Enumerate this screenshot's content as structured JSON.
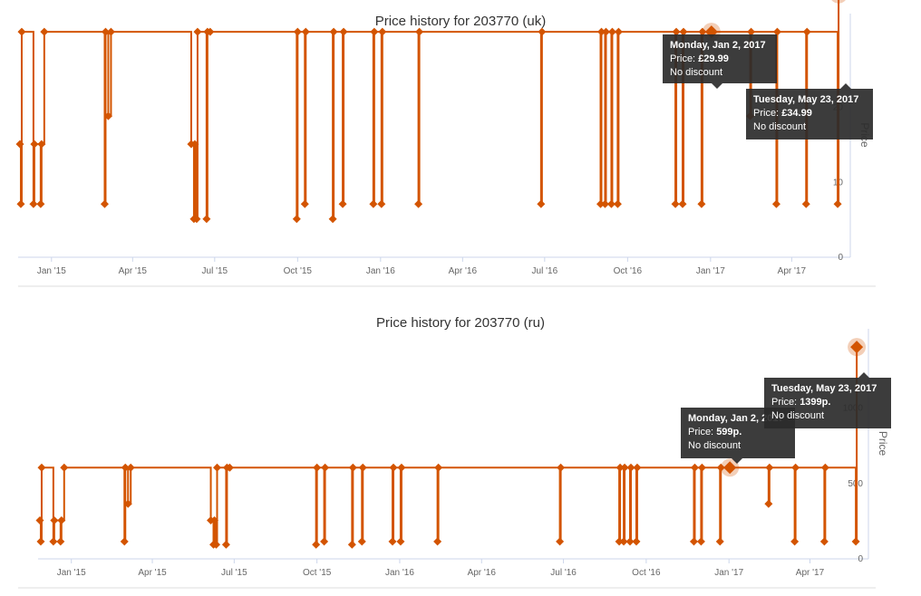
{
  "chart_data": [
    {
      "type": "line",
      "title": "Price history for 203770 (uk)",
      "ylabel": "Price",
      "xlabel": "",
      "x_tick_labels": [
        "Jan '15",
        "Apr '15",
        "Jul '15",
        "Oct '15",
        "Jan '16",
        "Apr '16",
        "Jul '16",
        "Oct '16",
        "Jan '17",
        "Apr '17"
      ],
      "x_tick_dates": [
        "2015-01-01",
        "2015-04-01",
        "2015-07-01",
        "2015-10-01",
        "2016-01-01",
        "2016-04-01",
        "2016-07-01",
        "2016-10-01",
        "2017-01-01",
        "2017-04-01"
      ],
      "y_ticks": [
        0,
        10,
        20
      ],
      "y_tick_labels": [
        "0",
        "10",
        "20"
      ],
      "ylim": [
        0,
        30
      ],
      "xlim": [
        "2014-11-25",
        "2017-06-05"
      ],
      "grid": false,
      "line_color": "#d35400",
      "step": true,
      "series": [
        {
          "name": "",
          "points": [
            [
              "2014-11-27",
              14.99
            ],
            [
              "2014-11-28",
              6.99
            ],
            [
              "2014-11-29",
              29.99
            ],
            [
              "2014-12-12",
              6.99
            ],
            [
              "2014-12-13",
              14.99
            ],
            [
              "2014-12-20",
              6.99
            ],
            [
              "2014-12-21",
              14.99
            ],
            [
              "2014-12-24",
              29.99
            ],
            [
              "2015-03-01",
              6.99
            ],
            [
              "2015-03-02",
              29.99
            ],
            [
              "2015-03-05",
              18.74
            ],
            [
              "2015-03-08",
              29.99
            ],
            [
              "2015-06-05",
              14.99
            ],
            [
              "2015-06-08",
              4.99
            ],
            [
              "2015-06-09",
              14.99
            ],
            [
              "2015-06-11",
              4.99
            ],
            [
              "2015-06-12",
              29.99
            ],
            [
              "2015-06-22",
              4.99
            ],
            [
              "2015-06-23",
              29.99
            ],
            [
              "2015-06-26",
              29.99
            ],
            [
              "2015-09-30",
              4.99
            ],
            [
              "2015-10-01",
              29.99
            ],
            [
              "2015-10-09",
              6.99
            ],
            [
              "2015-10-10",
              29.99
            ],
            [
              "2015-11-09",
              4.99
            ],
            [
              "2015-11-10",
              29.99
            ],
            [
              "2015-11-20",
              6.99
            ],
            [
              "2015-11-21",
              29.99
            ],
            [
              "2015-12-24",
              6.99
            ],
            [
              "2015-12-25",
              29.99
            ],
            [
              "2016-01-02",
              6.99
            ],
            [
              "2016-01-03",
              29.99
            ],
            [
              "2016-02-12",
              6.99
            ],
            [
              "2016-02-13",
              29.99
            ],
            [
              "2016-06-27",
              6.99
            ],
            [
              "2016-06-28",
              29.99
            ],
            [
              "2016-09-01",
              6.99
            ],
            [
              "2016-09-02",
              29.99
            ],
            [
              "2016-09-06",
              6.99
            ],
            [
              "2016-09-07",
              29.99
            ],
            [
              "2016-09-13",
              6.99
            ],
            [
              "2016-09-14",
              29.99
            ],
            [
              "2016-09-20",
              6.99
            ],
            [
              "2016-09-21",
              29.99
            ],
            [
              "2016-11-23",
              6.99
            ],
            [
              "2016-11-24",
              29.99
            ],
            [
              "2016-12-01",
              6.99
            ],
            [
              "2016-12-02",
              29.99
            ],
            [
              "2016-12-22",
              6.99
            ],
            [
              "2016-12-23",
              29.99
            ],
            [
              "2017-01-02",
              29.99
            ],
            [
              "2017-02-14",
              18.74
            ],
            [
              "2017-02-15",
              29.99
            ],
            [
              "2017-03-15",
              6.99
            ],
            [
              "2017-03-16",
              29.99
            ],
            [
              "2017-04-17",
              6.99
            ],
            [
              "2017-04-18",
              29.99
            ],
            [
              "2017-05-22",
              6.99
            ],
            [
              "2017-05-23",
              34.99
            ]
          ]
        }
      ],
      "highlighted_points": [
        {
          "x": "2017-01-02",
          "y": 29.99
        },
        {
          "x": "2017-05-23",
          "y": 34.99
        }
      ],
      "tooltips": [
        {
          "title": "Monday, Jan 2, 2017",
          "price_label": "Price: ",
          "price": "£29.99",
          "discount": "No discount"
        },
        {
          "title": "Tuesday, May 23, 2017",
          "price_label": "Price: ",
          "price": "£34.99",
          "discount": "No discount"
        }
      ]
    },
    {
      "type": "line",
      "title": "Price history for 203770 (ru)",
      "ylabel": "Price",
      "xlabel": "",
      "x_tick_labels": [
        "Jan '15",
        "Apr '15",
        "Jul '15",
        "Oct '15",
        "Jan '16",
        "Apr '16",
        "Jul '16",
        "Oct '16",
        "Jan '17",
        "Apr '17"
      ],
      "x_tick_dates": [
        "2015-01-01",
        "2015-04-01",
        "2015-07-01",
        "2015-10-01",
        "2016-01-01",
        "2016-04-01",
        "2016-07-01",
        "2016-10-01",
        "2017-01-01",
        "2017-04-01"
      ],
      "y_ticks": [
        0,
        500,
        1000
      ],
      "y_tick_labels": [
        "0",
        "500",
        "1000"
      ],
      "ylim": [
        0,
        1400
      ],
      "xlim": [
        "2014-11-25",
        "2017-06-05"
      ],
      "grid": false,
      "line_color": "#d35400",
      "step": true,
      "series": [
        {
          "name": "",
          "points": [
            [
              "2014-11-27",
              249
            ],
            [
              "2014-11-28",
              109
            ],
            [
              "2014-11-29",
              599
            ],
            [
              "2014-12-12",
              109
            ],
            [
              "2014-12-13",
              249
            ],
            [
              "2014-12-20",
              109
            ],
            [
              "2014-12-21",
              249
            ],
            [
              "2014-12-24",
              599
            ],
            [
              "2015-03-01",
              109
            ],
            [
              "2015-03-02",
              599
            ],
            [
              "2015-03-05",
              359
            ],
            [
              "2015-03-08",
              599
            ],
            [
              "2015-06-05",
              249
            ],
            [
              "2015-06-08",
              89
            ],
            [
              "2015-06-09",
              249
            ],
            [
              "2015-06-11",
              89
            ],
            [
              "2015-06-12",
              599
            ],
            [
              "2015-06-22",
              89
            ],
            [
              "2015-06-23",
              599
            ],
            [
              "2015-06-26",
              599
            ],
            [
              "2015-09-30",
              89
            ],
            [
              "2015-10-01",
              599
            ],
            [
              "2015-10-09",
              109
            ],
            [
              "2015-10-10",
              599
            ],
            [
              "2015-11-09",
              89
            ],
            [
              "2015-11-10",
              599
            ],
            [
              "2015-11-20",
              109
            ],
            [
              "2015-11-21",
              599
            ],
            [
              "2015-12-24",
              109
            ],
            [
              "2015-12-25",
              599
            ],
            [
              "2016-01-02",
              109
            ],
            [
              "2016-01-03",
              599
            ],
            [
              "2016-02-12",
              109
            ],
            [
              "2016-02-13",
              599
            ],
            [
              "2016-06-27",
              109
            ],
            [
              "2016-06-28",
              599
            ],
            [
              "2016-09-01",
              109
            ],
            [
              "2016-09-02",
              599
            ],
            [
              "2016-09-06",
              109
            ],
            [
              "2016-09-07",
              599
            ],
            [
              "2016-09-13",
              109
            ],
            [
              "2016-09-14",
              599
            ],
            [
              "2016-09-20",
              109
            ],
            [
              "2016-09-21",
              599
            ],
            [
              "2016-11-23",
              109
            ],
            [
              "2016-11-24",
              599
            ],
            [
              "2016-12-01",
              109
            ],
            [
              "2016-12-02",
              599
            ],
            [
              "2016-12-22",
              109
            ],
            [
              "2016-12-23",
              599
            ],
            [
              "2017-01-02",
              599
            ],
            [
              "2017-02-14",
              359
            ],
            [
              "2017-02-15",
              599
            ],
            [
              "2017-03-15",
              109
            ],
            [
              "2017-03-16",
              599
            ],
            [
              "2017-04-17",
              109
            ],
            [
              "2017-04-18",
              599
            ],
            [
              "2017-05-22",
              109
            ],
            [
              "2017-05-23",
              1399
            ]
          ]
        }
      ],
      "highlighted_points": [
        {
          "x": "2017-01-02",
          "y": 599
        },
        {
          "x": "2017-05-23",
          "y": 1399
        }
      ],
      "tooltips": [
        {
          "title": "Monday, Jan 2, 2017",
          "price_label": "Price: ",
          "price": "599p.",
          "discount": "No discount"
        },
        {
          "title": "Tuesday, May 23, 2017",
          "price_label": "Price: ",
          "price": "1399p.",
          "discount": "No discount"
        }
      ]
    }
  ]
}
